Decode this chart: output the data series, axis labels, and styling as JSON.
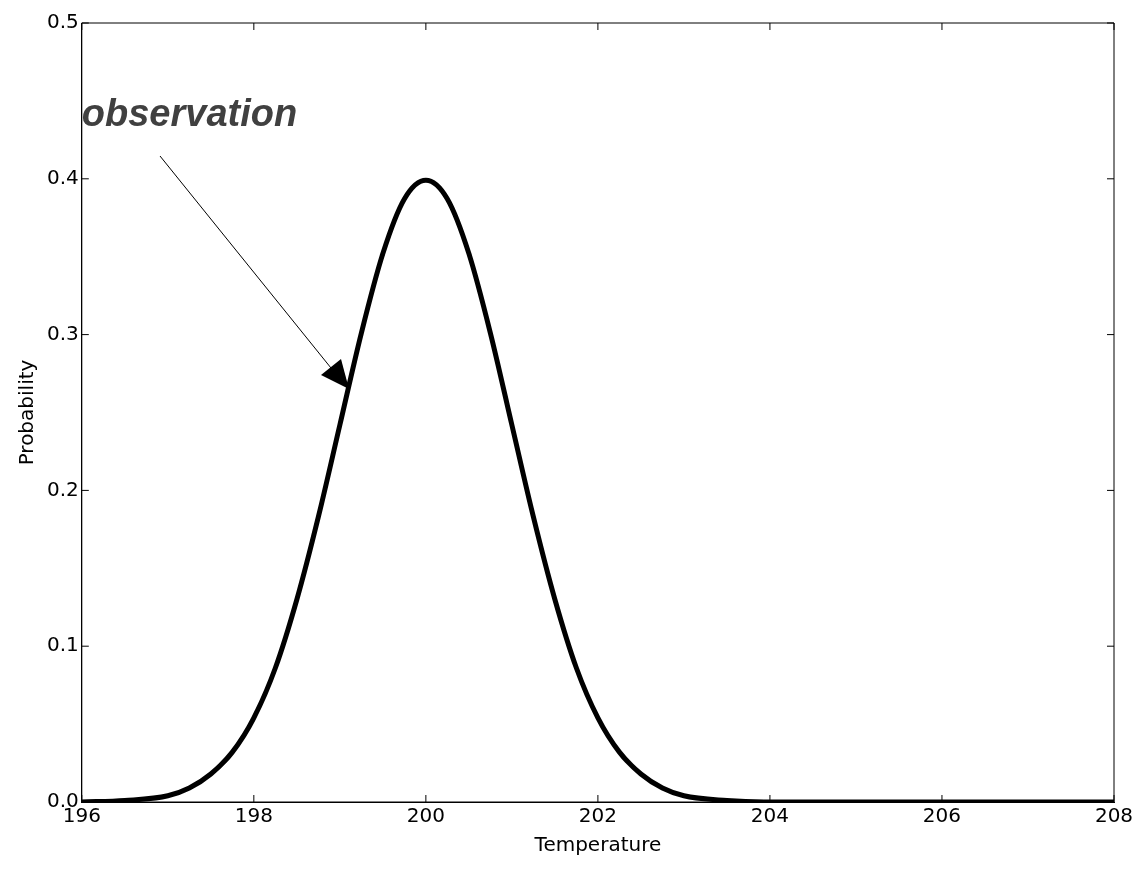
{
  "chart_data": {
    "type": "line",
    "xlabel": "Temperature",
    "ylabel": "Probability",
    "x": [
      196,
      196.5,
      197,
      197.25,
      197.5,
      197.75,
      198,
      198.25,
      198.5,
      198.75,
      199,
      199.25,
      199.5,
      199.75,
      200,
      200.25,
      200.5,
      200.75,
      201,
      201.25,
      201.5,
      201.75,
      202,
      202.25,
      202.5,
      202.75,
      203,
      203.5,
      204,
      205,
      206,
      207,
      208
    ],
    "series": [
      {
        "color": "#000000",
        "values": [
          0.0,
          0.001,
          0.004,
          0.009,
          0.018,
          0.032,
          0.054,
          0.086,
          0.13,
          0.183,
          0.242,
          0.301,
          0.352,
          0.387,
          0.399,
          0.387,
          0.352,
          0.301,
          0.242,
          0.183,
          0.13,
          0.086,
          0.054,
          0.032,
          0.018,
          0.009,
          0.004,
          0.001,
          0.0,
          0.0,
          0.0,
          0.0,
          0.0
        ]
      }
    ],
    "xlim": [
      196,
      208
    ],
    "ylim": [
      0,
      0.5
    ],
    "xticks": [
      196,
      198,
      200,
      202,
      204,
      206,
      208
    ],
    "yticks": [
      {
        "value": 0,
        "label": "0.0"
      },
      {
        "value": 0.1,
        "label": "0.1"
      },
      {
        "value": 0.2,
        "label": "0.2"
      },
      {
        "value": 0.3,
        "label": "0.3"
      },
      {
        "value": 0.4,
        "label": "0.4"
      },
      {
        "value": 0.5,
        "label": "0.5"
      }
    ],
    "grid": false,
    "legend": false,
    "marker": "none",
    "line_style": "solid",
    "annotations": [
      "observation"
    ]
  }
}
